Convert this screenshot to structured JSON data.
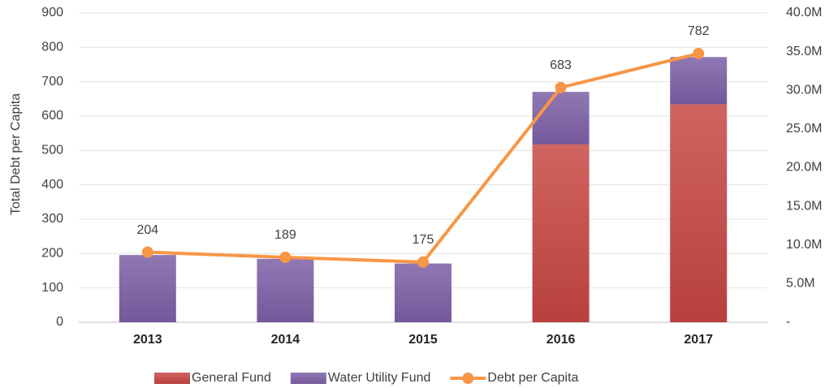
{
  "chart_data": {
    "type": "bar-line",
    "y_label": "Total Debt per Capita",
    "categories": [
      "2013",
      "2014",
      "2015",
      "2016",
      "2017"
    ],
    "series": [
      {
        "name": "General Fund",
        "type": "bar",
        "color": "#c0504d",
        "axis": "y2",
        "values": [
          0,
          0,
          0,
          23000000,
          28200000
        ]
      },
      {
        "name": "Water Utility Fund",
        "type": "bar",
        "color": "#8064a2",
        "axis": "y2",
        "values": [
          8700000,
          8200000,
          7600000,
          6800000,
          6100000
        ]
      },
      {
        "name": "Debt per Capita",
        "type": "line",
        "color": "#f79646",
        "values": [
          204,
          189,
          175,
          683,
          782
        ]
      }
    ],
    "ylim": [
      0,
      900
    ],
    "yticks": [
      0,
      100,
      200,
      300,
      400,
      500,
      600,
      700,
      800,
      900
    ],
    "y2lim": [
      0,
      40000000
    ],
    "y2ticks": [
      {
        "value": 0,
        "label": "-"
      },
      {
        "value": 5000000,
        "label": "5.0M"
      },
      {
        "value": 10000000,
        "label": "10.0M"
      },
      {
        "value": 15000000,
        "label": "15.0M"
      },
      {
        "value": 20000000,
        "label": "20.0M"
      },
      {
        "value": 25000000,
        "label": "25.0M"
      },
      {
        "value": 30000000,
        "label": "30.0M"
      },
      {
        "value": 35000000,
        "label": "35.0M"
      },
      {
        "value": 40000000,
        "label": "40.0M"
      }
    ],
    "grid": true,
    "legend": "bottom"
  }
}
